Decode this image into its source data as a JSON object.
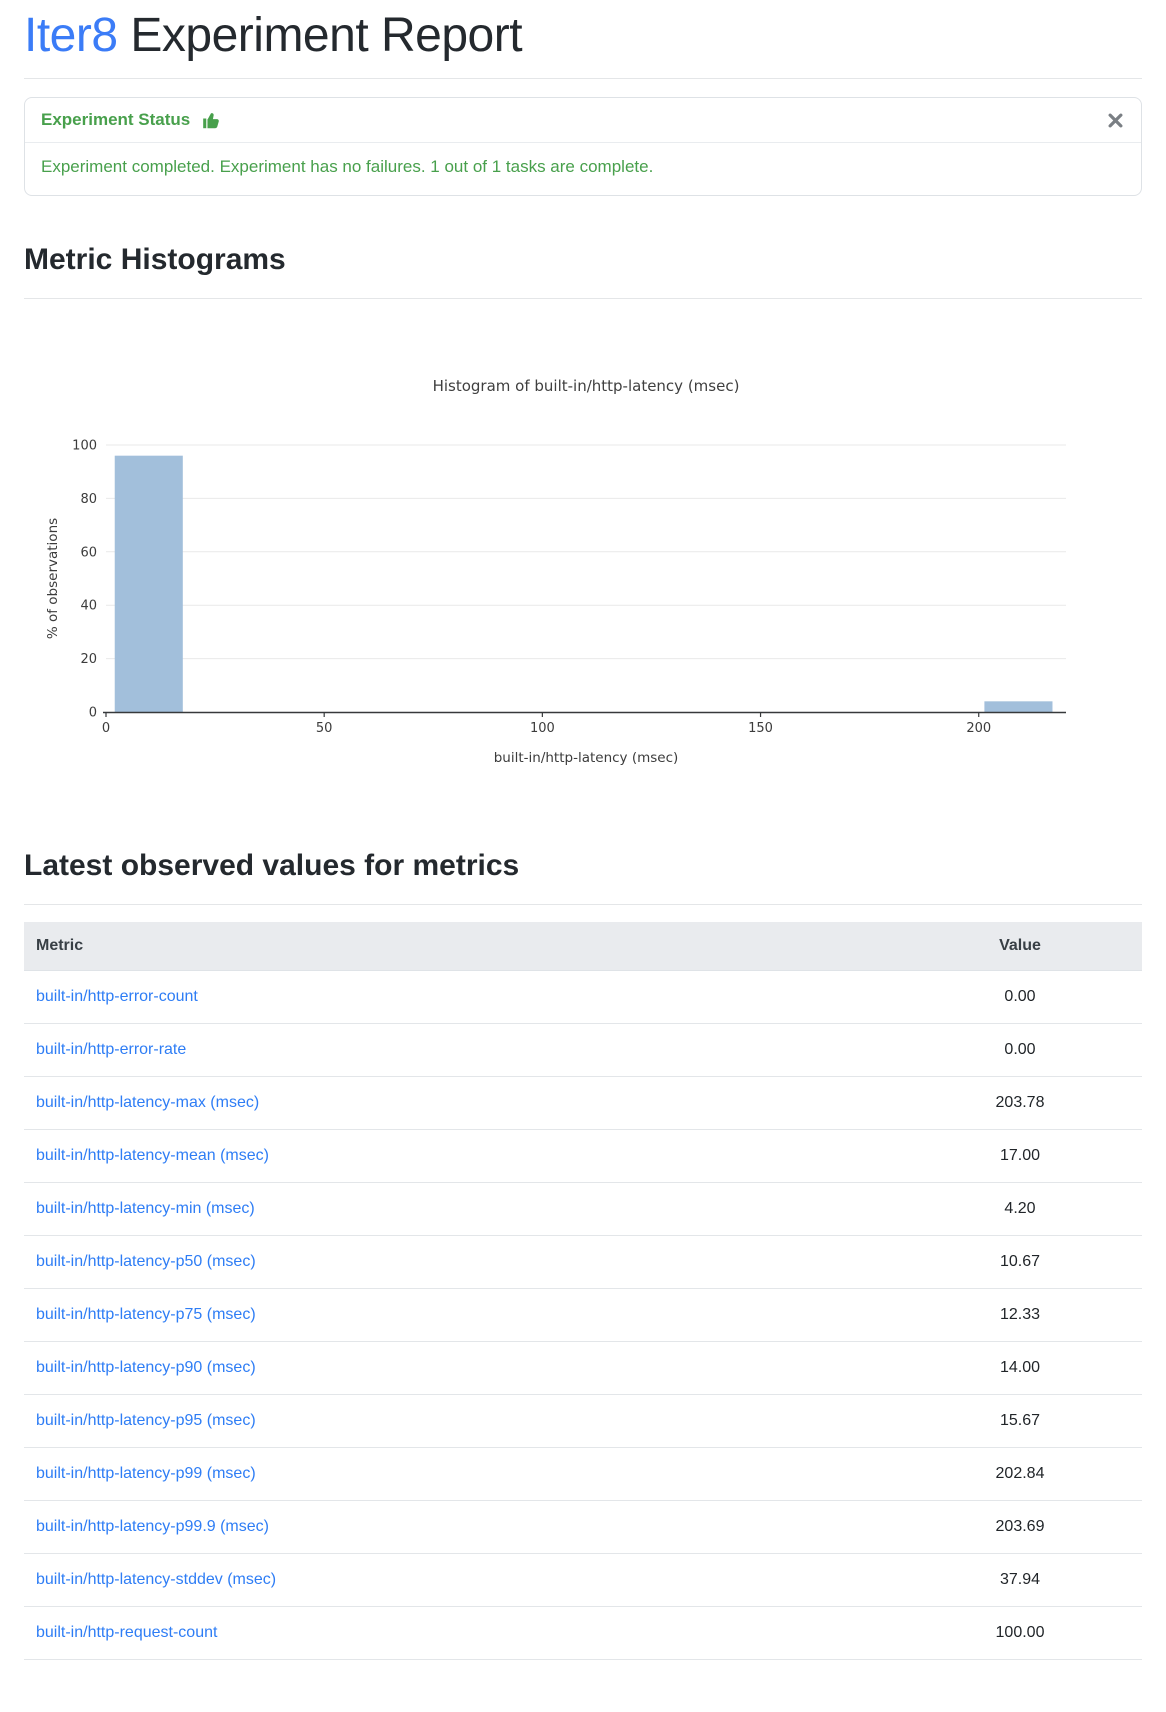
{
  "page": {
    "title_brand": "Iter8",
    "title_rest": " Experiment Report"
  },
  "status_card": {
    "title": "Experiment Status",
    "icon": "thumbs-up-icon",
    "message": "Experiment completed. Experiment has no failures. 1 out of 1 tasks are complete.",
    "accent_color": "#48a04c"
  },
  "sections": {
    "histograms_heading": "Metric Histograms",
    "metrics_heading": "Latest observed values for metrics"
  },
  "chart_data": {
    "type": "bar",
    "variant": "histogram",
    "title": "Histogram of built-in/http-latency (msec)",
    "xlabel": "built-in/http-latency (msec)",
    "ylabel": "% of observations",
    "xlim": [
      0,
      220
    ],
    "ylim": [
      0,
      100
    ],
    "x_ticks": [
      0,
      50,
      100,
      150,
      200
    ],
    "y_ticks": [
      0,
      20,
      40,
      60,
      80,
      100
    ],
    "grid": true,
    "legend": false,
    "bar_color": "#a2bfdb",
    "bins": [
      {
        "x0": 2,
        "x1": 17.6,
        "percent": 96
      },
      {
        "x0": 201.3,
        "x1": 216.9,
        "percent": 4
      }
    ]
  },
  "metrics_table": {
    "columns": [
      "Metric",
      "Value"
    ],
    "rows": [
      {
        "metric": "built-in/http-error-count",
        "value": "0.00"
      },
      {
        "metric": "built-in/http-error-rate",
        "value": "0.00"
      },
      {
        "metric": "built-in/http-latency-max (msec)",
        "value": "203.78"
      },
      {
        "metric": "built-in/http-latency-mean (msec)",
        "value": "17.00"
      },
      {
        "metric": "built-in/http-latency-min (msec)",
        "value": "4.20"
      },
      {
        "metric": "built-in/http-latency-p50 (msec)",
        "value": "10.67"
      },
      {
        "metric": "built-in/http-latency-p75 (msec)",
        "value": "12.33"
      },
      {
        "metric": "built-in/http-latency-p90 (msec)",
        "value": "14.00"
      },
      {
        "metric": "built-in/http-latency-p95 (msec)",
        "value": "15.67"
      },
      {
        "metric": "built-in/http-latency-p99 (msec)",
        "value": "202.84"
      },
      {
        "metric": "built-in/http-latency-p99.9 (msec)",
        "value": "203.69"
      },
      {
        "metric": "built-in/http-latency-stddev (msec)",
        "value": "37.94"
      },
      {
        "metric": "built-in/http-request-count",
        "value": "100.00"
      }
    ]
  }
}
